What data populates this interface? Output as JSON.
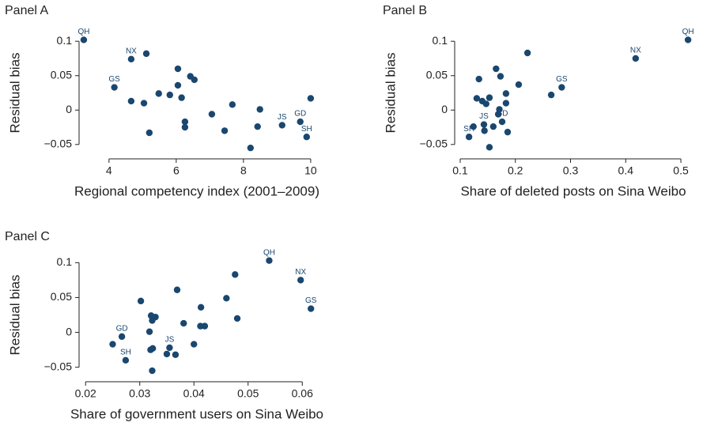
{
  "chart_data": [
    {
      "type": "scatter",
      "title": "Panel A",
      "x_label": "Regional competency index (2001–2009)",
      "y_label": "Residual bias",
      "color": "#1a476f",
      "x": [
        3.25,
        4.66,
        5.11,
        4.16,
        4.66,
        5.04,
        5.2,
        5.48,
        5.81,
        6.05,
        6.05,
        6.16,
        6.42,
        6.54,
        6.26,
        6.26,
        7.06,
        7.67,
        7.44,
        8.21,
        8.49,
        8.42,
        9.15,
        9.69,
        9.88,
        10.0
      ],
      "values": [
        0.102,
        0.074,
        0.082,
        0.033,
        0.013,
        0.01,
        -0.033,
        0.024,
        0.022,
        0.06,
        0.036,
        0.018,
        0.049,
        0.044,
        -0.017,
        -0.025,
        -0.006,
        0.008,
        -0.03,
        -0.055,
        0.001,
        -0.024,
        -0.022,
        -0.017,
        -0.039,
        0.017
      ],
      "point_labels": [
        "QH",
        "NX",
        null,
        "GS",
        null,
        null,
        null,
        null,
        null,
        null,
        null,
        null,
        null,
        null,
        null,
        null,
        null,
        null,
        null,
        null,
        null,
        null,
        "JS",
        "GD",
        "SH",
        null
      ],
      "xlim": [
        3.11,
        10.12
      ],
      "xticks": [
        4,
        6,
        8,
        10
      ],
      "ylim": [
        -0.064,
        0.114
      ],
      "yticks": [
        0.1,
        0.05,
        0,
        {
          "value": -0.05,
          "label": "−0.05"
        }
      ]
    },
    {
      "type": "scatter",
      "title": "Panel B",
      "x_label": "Share of deleted posts on Sina Weibo",
      "y_label": "Residual bias",
      "color": "#1a476f",
      "x": [
        0.513,
        0.418,
        0.284,
        0.265,
        0.222,
        0.206,
        0.165,
        0.173,
        0.134,
        0.13,
        0.14,
        0.147,
        0.153,
        0.183,
        0.183,
        0.171,
        0.169,
        0.143,
        0.144,
        0.176,
        0.186,
        0.16,
        0.124,
        0.116,
        0.153
      ],
      "values": [
        0.102,
        0.075,
        0.033,
        0.022,
        0.083,
        0.037,
        0.06,
        0.049,
        0.045,
        0.017,
        0.013,
        0.009,
        0.018,
        0.024,
        0.01,
        0.001,
        -0.006,
        -0.021,
        -0.03,
        -0.017,
        -0.032,
        -0.024,
        -0.024,
        -0.039,
        -0.054
      ],
      "point_labels": [
        "QH",
        "NX",
        "GS",
        null,
        null,
        null,
        null,
        null,
        null,
        null,
        null,
        null,
        null,
        null,
        null,
        null,
        null,
        "JS",
        null,
        "GD",
        null,
        null,
        null,
        "SH",
        null
      ],
      "xlim": [
        0.09,
        0.52
      ],
      "xticks": [
        0.1,
        0.2,
        0.3,
        0.4,
        0.5
      ],
      "ylim": [
        -0.064,
        0.114
      ],
      "yticks": [
        0.1,
        0.05,
        0,
        {
          "value": -0.05,
          "label": "−0.05"
        }
      ]
    },
    {
      "type": "scatter",
      "title": "Panel C",
      "x_label": "Share of government users on Sina Weibo",
      "y_label": "Residual bias",
      "color": "#1a476f",
      "x": [
        0.0539,
        0.0597,
        0.0616,
        0.0476,
        0.046,
        0.048,
        0.0413,
        0.0412,
        0.042,
        0.0369,
        0.0381,
        0.04,
        0.0302,
        0.0321,
        0.0329,
        0.0323,
        0.0318,
        0.032,
        0.0324,
        0.0323,
        0.0355,
        0.035,
        0.0366,
        0.0267,
        0.025,
        0.0274
      ],
      "values": [
        0.103,
        0.075,
        0.034,
        0.083,
        0.049,
        0.02,
        0.036,
        0.009,
        0.009,
        0.061,
        0.013,
        -0.017,
        0.045,
        0.024,
        0.022,
        0.017,
        0.001,
        -0.025,
        -0.023,
        -0.055,
        -0.022,
        -0.031,
        -0.032,
        -0.006,
        -0.017,
        -0.04
      ],
      "point_labels": [
        "QH",
        "NX",
        "GS",
        null,
        null,
        null,
        null,
        null,
        null,
        null,
        null,
        null,
        null,
        null,
        null,
        null,
        null,
        null,
        null,
        null,
        "JS",
        null,
        null,
        "GD",
        null,
        "SH"
      ],
      "xlim": [
        0.0188,
        0.0623
      ],
      "xticks": [
        0.02,
        0.03,
        0.04,
        0.05,
        0.06
      ],
      "ylim": [
        -0.064,
        0.114
      ],
      "yticks": [
        0.1,
        0.05,
        0,
        {
          "value": -0.05,
          "label": "−0.05"
        }
      ]
    }
  ]
}
